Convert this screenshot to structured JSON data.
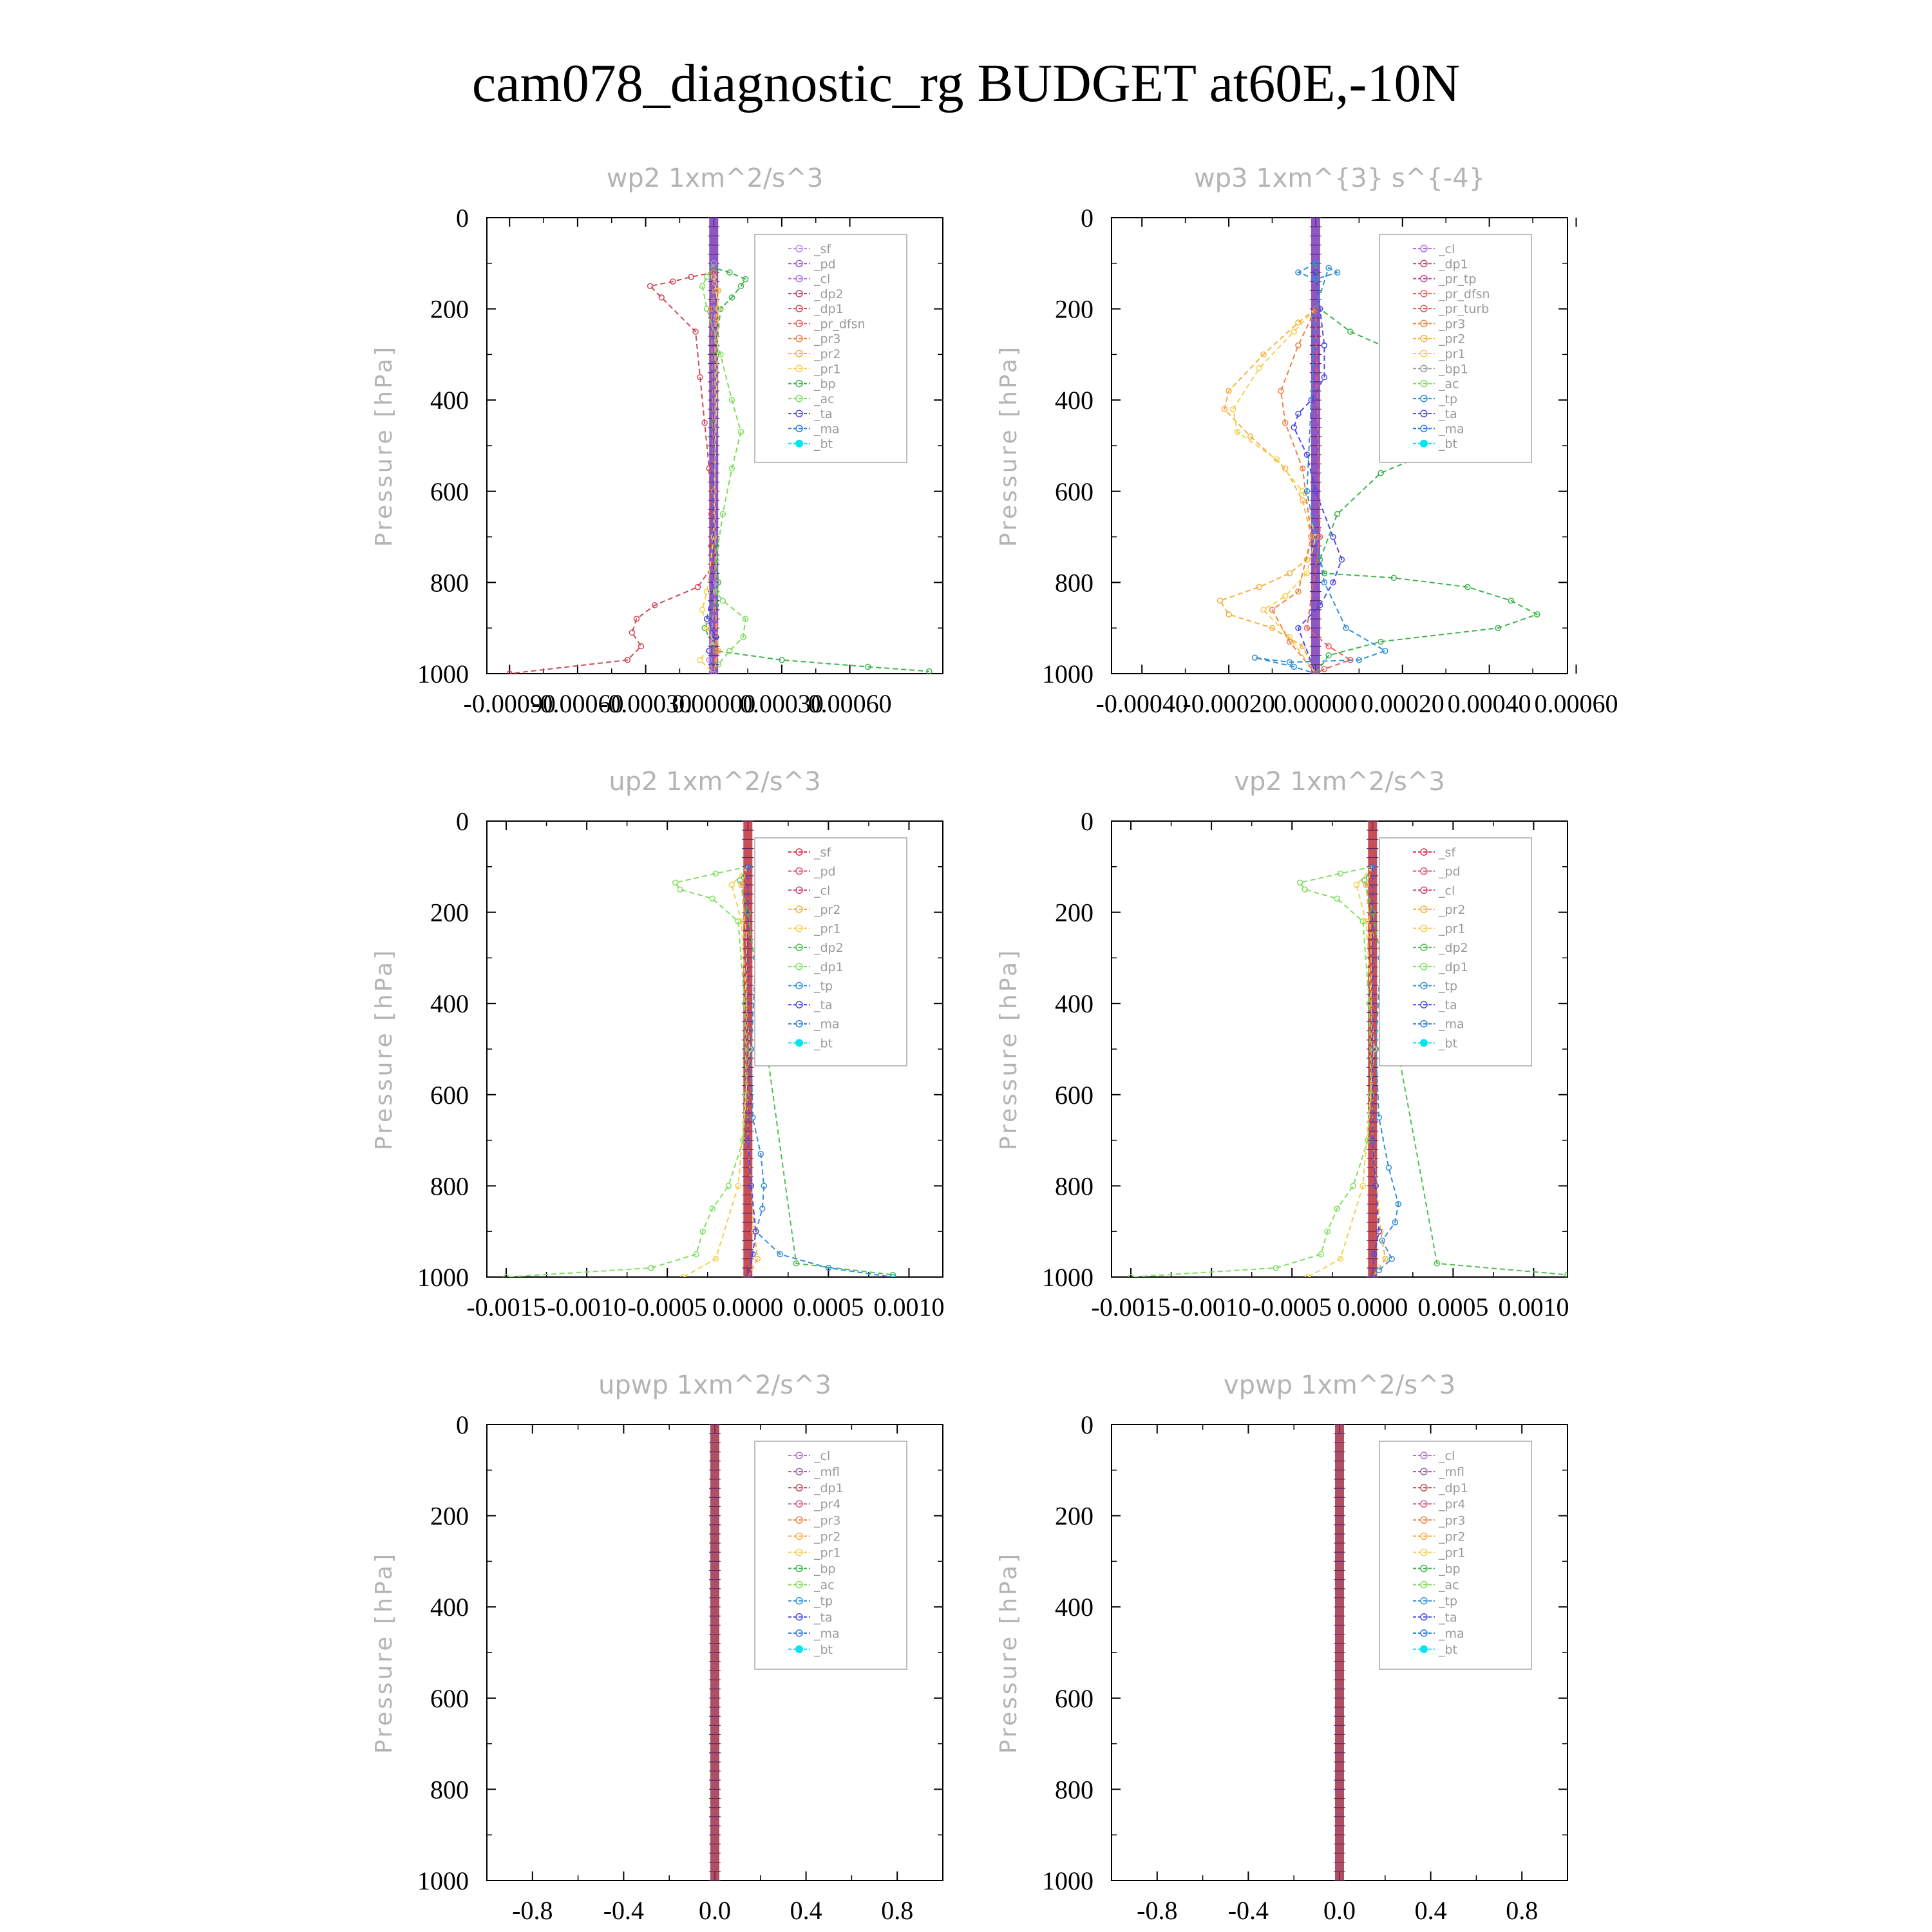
{
  "title": "cam078_diagnostic_rg  BUDGET at60E,-10N",
  "colors": {
    "sf": "#b58ee0",
    "pd": "#9b59d0",
    "cl": "#b070d8",
    "mfl": "#9b59b6",
    "dp2": "#c0466b",
    "dp1": "#d04a5a",
    "pr4": "#e0567a",
    "pr_dfsn": "#e8605a",
    "pr_tp": "#c04aa0",
    "pr_turb": "#e05858",
    "pr3": "#f08040",
    "pr2": "#f5b040",
    "pr1": "#f2d050",
    "bp": "#3cb44b",
    "ac": "#7edc5a",
    "tp": "#2f8fd8",
    "ta": "#4a4ae8",
    "ma": "#2a7ae0",
    "bt": "#00e5ee",
    "red_sf": "#e03050",
    "red_pd": "#e05060",
    "red_cl": "#d04070",
    "dp2_green": "#50c050",
    "dp1_green": "#80e060"
  },
  "chart_data": [
    {
      "type": "line",
      "title": "wp2   1xm^2/s^3",
      "ylabel": "Pressure [hPa]",
      "ylim": [
        1000,
        0
      ],
      "y_ticks": [
        "0",
        "200",
        "400",
        "600",
        "800",
        "1000"
      ],
      "xlim": [
        -0.001,
        0.00101
      ],
      "x_ticks": [
        -0.0009,
        -0.0006,
        -0.0003,
        0.0,
        0.0003,
        0.0006
      ],
      "x_tick_labels": [
        "-0.00090",
        "-0.00060",
        "-0.00030",
        "0.00000",
        "0.00030",
        "0.00060"
      ],
      "legend": [
        "_sf",
        "_pd",
        "_cl",
        "_dp2",
        "_dp1",
        "_pr_dfsn",
        "_pr3",
        "_pr2",
        "_pr1",
        "_bp",
        "_ac",
        "_ta",
        "_ma",
        "_bt"
      ],
      "series": [
        {
          "name": "_dp1",
          "color_key": "dp1",
          "x": [
            0,
            0,
            -0.0001,
            -0.00018,
            -0.00028,
            -0.00023,
            -8e-05,
            -6e-05,
            -4e-05,
            -2e-05,
            -1e-05,
            -1e-05,
            0,
            -7e-05,
            -0.00026,
            -0.00034,
            -0.00036,
            -0.00032,
            -0.00038,
            -0.0009
          ],
          "y": [
            100,
            120,
            130,
            140,
            150,
            175,
            250,
            350,
            450,
            550,
            650,
            720,
            760,
            810,
            850,
            880,
            910,
            940,
            970,
            1000
          ]
        },
        {
          "name": "_bp",
          "color_key": "bp",
          "x": [
            0,
            0,
            7e-05,
            0.00014,
            0.00012,
            8e-05,
            3e-05,
            1e-05,
            0,
            0,
            1e-05,
            2e-05,
            1e-05,
            -4e-05,
            1e-05,
            0.0003,
            0.00068,
            0.00095
          ],
          "y": [
            100,
            110,
            120,
            135,
            150,
            175,
            200,
            300,
            450,
            600,
            720,
            800,
            850,
            900,
            950,
            970,
            985,
            995
          ]
        },
        {
          "name": "_ac",
          "color_key": "ac",
          "x": [
            0,
            -3e-05,
            -5e-05,
            -3e-05,
            3e-05,
            8e-05,
            0.00012,
            8e-05,
            4e-05,
            1e-05,
            1e-05,
            4e-05,
            0.00014,
            0.00013,
            7e-05,
            2e-05
          ],
          "y": [
            100,
            130,
            150,
            200,
            300,
            400,
            470,
            550,
            650,
            750,
            820,
            840,
            880,
            920,
            950,
            980
          ]
        },
        {
          "name": "_pr1",
          "color_key": "pr1",
          "x": [
            0,
            1e-05,
            2e-05,
            0,
            -3e-05,
            -5e-05,
            -3e-05,
            0,
            -6e-05,
            0
          ],
          "y": [
            130,
            160,
            200,
            700,
            820,
            860,
            900,
            930,
            970,
            1000
          ]
        },
        {
          "name": "_pr2",
          "color_key": "pr2",
          "x": [
            0,
            2e-05,
            1e-05,
            0,
            2e-05,
            0
          ],
          "y": [
            120,
            160,
            220,
            800,
            950,
            1000
          ]
        },
        {
          "name": "_pr3",
          "color_key": "pr3",
          "x": [
            0,
            -1e-05,
            0,
            1e-05,
            0
          ],
          "y": [
            120,
            200,
            600,
            950,
            1000
          ]
        },
        {
          "name": "_ta",
          "color_key": "ta",
          "x": [
            0,
            0,
            -3e-05,
            1e-05,
            -2e-05,
            0
          ],
          "y": [
            100,
            800,
            880,
            920,
            950,
            1000
          ]
        },
        {
          "name": "_sf",
          "color_key": "sf",
          "x": [
            0,
            1e-05,
            -2e-05,
            0
          ],
          "y": [
            100,
            800,
            970,
            1000
          ]
        }
      ]
    },
    {
      "type": "line",
      "title": "wp3   1xm^{3} s^{-4}",
      "ylabel": "Pressure [hPa]",
      "ylim": [
        1000,
        0
      ],
      "y_ticks": [
        "0",
        "200",
        "400",
        "600",
        "800",
        "1000"
      ],
      "xlim": [
        -0.00047,
        0.00058
      ],
      "x_ticks": [
        -0.0004,
        -0.0002,
        0.0,
        0.0002,
        0.0004,
        0.0006
      ],
      "x_tick_labels": [
        "-0.00040",
        "-0.00020",
        "0.00000",
        "0.00020",
        "0.00040",
        "0.00060"
      ],
      "legend": [
        "_cl",
        "_dp1",
        "_pr_tp",
        "_pr_dfsn",
        "_pr_turb",
        "_pr3",
        "_pr2",
        "_pr1",
        "_bp1",
        "_ac",
        "_tp",
        "_ta",
        "_ma",
        "_bt"
      ],
      "series": [
        {
          "name": "_bp1",
          "color_key": "bp",
          "x": [
            0,
            1e-05,
            8e-05,
            0.0002,
            0.00032,
            0.00035,
            0.0003,
            0.00015,
            5e-05,
            1e-05,
            2e-05,
            0.00018,
            0.00035,
            0.00045,
            0.00051,
            0.00042,
            0.00015,
            3e-05,
            0
          ],
          "y": [
            100,
            200,
            250,
            300,
            380,
            450,
            500,
            560,
            650,
            750,
            780,
            790,
            810,
            840,
            870,
            900,
            930,
            960,
            1000
          ]
        },
        {
          "name": "_pr2",
          "color_key": "pr2",
          "x": [
            0,
            -4e-05,
            -0.00012,
            -0.0002,
            -0.00021,
            -0.00015,
            -7e-05,
            -3e-05,
            -1e-05,
            -2e-05,
            -6e-05,
            -0.00013,
            -0.00022,
            -0.0002,
            -0.0001,
            -3e-05,
            0
          ],
          "y": [
            200,
            230,
            300,
            380,
            420,
            480,
            550,
            620,
            700,
            750,
            780,
            810,
            840,
            870,
            900,
            940,
            1000
          ]
        },
        {
          "name": "_pr1",
          "color_key": "pr1",
          "x": [
            0,
            -5e-05,
            -0.00013,
            -0.00019,
            -0.00018,
            -9e-05,
            -3e-05,
            0,
            -2e-05,
            -7e-05,
            -0.00012,
            -6e-05,
            0
          ],
          "y": [
            200,
            250,
            330,
            420,
            470,
            530,
            600,
            700,
            780,
            830,
            860,
            920,
            1000
          ]
        },
        {
          "name": "_pr3",
          "color_key": "pr3",
          "x": [
            0,
            -4e-05,
            -8e-05,
            -7e-05,
            -3e-05,
            -1e-05,
            -4e-05,
            -0.0001,
            -6e-05,
            0
          ],
          "y": [
            200,
            280,
            380,
            450,
            550,
            700,
            820,
            860,
            930,
            1000
          ]
        },
        {
          "name": "_ta",
          "color_key": "ta",
          "x": [
            0,
            1e-05,
            2e-05,
            2e-05,
            -1e-05,
            -4e-05,
            -5e-05,
            -2e-05,
            0,
            4e-05,
            6e-05,
            4e-05,
            1e-05,
            -4e-05,
            0
          ],
          "y": [
            120,
            200,
            280,
            350,
            400,
            430,
            460,
            520,
            600,
            700,
            750,
            800,
            850,
            900,
            1000
          ]
        },
        {
          "name": "_tp",
          "color_key": "tp",
          "x": [
            0,
            -4e-05,
            0,
            5e-05,
            3e-05,
            0,
            -2e-05,
            2e-05,
            7e-05,
            0.00016,
            0.0001,
            -6e-05,
            -0.00014,
            -5e-05,
            0
          ],
          "y": [
            100,
            120,
            135,
            120,
            110,
            200,
            600,
            800,
            900,
            950,
            970,
            975,
            965,
            985,
            1000
          ]
        },
        {
          "name": "_pr_dfsn",
          "color_key": "pr_dfsn",
          "x": [
            0,
            1e-05,
            -2e-05,
            3e-05,
            8e-05,
            2e-05,
            0
          ],
          "y": [
            200,
            700,
            900,
            940,
            970,
            990,
            1000
          ]
        }
      ]
    },
    {
      "type": "line",
      "title": "up2   1xm^2/s^3",
      "ylabel": "Pressure [hPa]",
      "ylim": [
        1000,
        0
      ],
      "y_ticks": [
        "0",
        "200",
        "400",
        "600",
        "800",
        "1000"
      ],
      "xlim": [
        -0.00162,
        0.00121
      ],
      "x_ticks": [
        -0.0015,
        -0.001,
        -0.0005,
        0.0,
        0.0005,
        0.001
      ],
      "x_tick_labels": [
        "-0.0015",
        "-0.0010",
        "-0.0005",
        "0.0000",
        "0.0005",
        "0.0010"
      ],
      "legend": [
        "_sf",
        "_pd",
        "_cl",
        "_pr2",
        "_pr1",
        "_dp2",
        "_dp1",
        "_tp",
        "_ta",
        "_ma",
        "_bt"
      ],
      "series": [
        {
          "name": "_dp1",
          "color_key": "dp1_green",
          "x": [
            0,
            -0.0002,
            -0.00045,
            -0.00042,
            -0.00022,
            -6e-05,
            -2e-05,
            -1e-05,
            -3e-05,
            -0.00012,
            -0.00022,
            -0.00028,
            -0.00032,
            -0.0006,
            -0.0015
          ],
          "y": [
            100,
            115,
            135,
            150,
            170,
            220,
            400,
            600,
            700,
            800,
            850,
            900,
            950,
            980,
            1000
          ]
        },
        {
          "name": "_dp2",
          "color_key": "dp2_green",
          "x": [
            0,
            -5e-05,
            0,
            0.0003,
            0.0009
          ],
          "y": [
            100,
            130,
            200,
            970,
            995
          ]
        },
        {
          "name": "_tp",
          "color_key": "tp",
          "x": [
            0,
            0.0002,
            0.00038,
            0.0003,
            0.00015,
            5e-05,
            2e-05,
            3e-05,
            8e-05,
            0.0001,
            9e-05,
            5e-05,
            0.0002,
            0.0005,
            0.0009
          ],
          "y": [
            100,
            110,
            140,
            170,
            230,
            300,
            500,
            650,
            730,
            800,
            850,
            900,
            950,
            980,
            1000
          ]
        },
        {
          "name": "_pr1",
          "color_key": "pr1",
          "x": [
            0,
            -0.0001,
            -4e-05,
            1e-05,
            -6e-05,
            -0.0002,
            -0.0004
          ],
          "y": [
            100,
            140,
            220,
            500,
            800,
            960,
            1000
          ]
        },
        {
          "name": "_pr2",
          "color_key": "pr2",
          "x": [
            0,
            -4e-05,
            -1e-05,
            0,
            4e-05,
            6e-05,
            0
          ],
          "y": [
            100,
            140,
            250,
            700,
            900,
            960,
            1000
          ]
        },
        {
          "name": "_ta",
          "color_key": "ta",
          "x": [
            0,
            0,
            2e-05,
            5e-05,
            3e-05,
            0
          ],
          "y": [
            100,
            700,
            800,
            900,
            950,
            1000
          ]
        }
      ]
    },
    {
      "type": "line",
      "title": "vp2   1xm^2/s^3",
      "ylabel": "Pressure [hPa]",
      "ylim": [
        1000,
        0
      ],
      "y_ticks": [
        "0",
        "200",
        "400",
        "600",
        "800",
        "1000"
      ],
      "xlim": [
        -0.00162,
        0.00121
      ],
      "x_ticks": [
        -0.0015,
        -0.001,
        -0.0005,
        0.0,
        0.0005,
        0.001
      ],
      "x_tick_labels": [
        "-0.0015",
        "-0.0010",
        "-0.0005",
        "0.0000",
        "0.0005",
        "0.0010"
      ],
      "legend": [
        "_sf",
        "_pd",
        "_cl",
        "_pr2",
        "_pr1",
        "_dp2",
        "_dp1",
        "_tp",
        "_ta",
        "_ma",
        "_bt"
      ],
      "series": [
        {
          "name": "_dp1",
          "color_key": "dp1_green",
          "x": [
            0,
            -0.0002,
            -0.00045,
            -0.00042,
            -0.00022,
            -6e-05,
            -2e-05,
            -1e-05,
            -3e-05,
            -0.00012,
            -0.00022,
            -0.00028,
            -0.00032,
            -0.0006,
            -0.0015
          ],
          "y": [
            100,
            115,
            135,
            150,
            170,
            220,
            400,
            600,
            700,
            800,
            850,
            900,
            950,
            980,
            1000
          ]
        },
        {
          "name": "_dp2",
          "color_key": "dp2_green",
          "x": [
            0,
            -5e-05,
            0,
            0.0004,
            0.00121
          ],
          "y": [
            100,
            130,
            200,
            970,
            995
          ]
        },
        {
          "name": "_tp",
          "color_key": "tp",
          "x": [
            0,
            0.0002,
            0.00038,
            0.0003,
            0.00015,
            5e-05,
            2e-05,
            4e-05,
            0.0001,
            0.00016,
            0.00014,
            6e-05,
            0.00012,
            4e-05,
            0
          ],
          "y": [
            100,
            110,
            140,
            170,
            230,
            300,
            500,
            650,
            760,
            840,
            880,
            920,
            960,
            985,
            1000
          ]
        },
        {
          "name": "_pr1",
          "color_key": "pr1",
          "x": [
            0,
            -0.0001,
            -4e-05,
            1e-05,
            -6e-05,
            -0.0002,
            -0.0004
          ],
          "y": [
            100,
            140,
            220,
            500,
            800,
            960,
            1000
          ]
        },
        {
          "name": "_pr2",
          "color_key": "pr2",
          "x": [
            0,
            -4e-05,
            -1e-05,
            0,
            5e-05,
            8e-05,
            0
          ],
          "y": [
            100,
            140,
            250,
            700,
            900,
            960,
            1000
          ]
        },
        {
          "name": "_ta",
          "color_key": "ta",
          "x": [
            0,
            0,
            2e-05,
            4e-05,
            1e-05,
            0
          ],
          "y": [
            100,
            700,
            800,
            900,
            950,
            1000
          ]
        }
      ]
    },
    {
      "type": "line",
      "title": "upwp   1xm^2/s^3",
      "ylabel": "Pressure [hPa]",
      "ylim": [
        1000,
        0
      ],
      "y_ticks": [
        "0",
        "200",
        "400",
        "600",
        "800",
        "1000"
      ],
      "xlim": [
        -1.0,
        1.0
      ],
      "x_ticks": [
        -0.8,
        -0.4,
        0.0,
        0.4,
        0.8
      ],
      "x_tick_labels": [
        "-0.8",
        "-0.4",
        "0.0",
        "0.4",
        "0.8"
      ],
      "legend": [
        "_cl",
        "_mfl",
        "_dp1",
        "_pr4",
        "_pr3",
        "_pr2",
        "_pr1",
        "_bp",
        "_ac",
        "_tp",
        "_ta",
        "_ma",
        "_bt"
      ],
      "series": []
    },
    {
      "type": "line",
      "title": "vpwp   1xm^2/s^3",
      "ylabel": "Pressure [hPa]",
      "ylim": [
        1000,
        0
      ],
      "y_ticks": [
        "0",
        "200",
        "400",
        "600",
        "800",
        "1000"
      ],
      "xlim": [
        -1.0,
        1.0
      ],
      "x_ticks": [
        -0.8,
        -0.4,
        0.0,
        0.4,
        0.8
      ],
      "x_tick_labels": [
        "-0.8",
        "-0.4",
        "0.0",
        "0.4",
        "0.8"
      ],
      "legend": [
        "_cl",
        "_mfl",
        "_dp1",
        "_pr4",
        "_pr3",
        "_pr2",
        "_pr1",
        "_bp",
        "_ac",
        "_tp",
        "_ta",
        "_ma",
        "_bt"
      ],
      "series": []
    }
  ]
}
